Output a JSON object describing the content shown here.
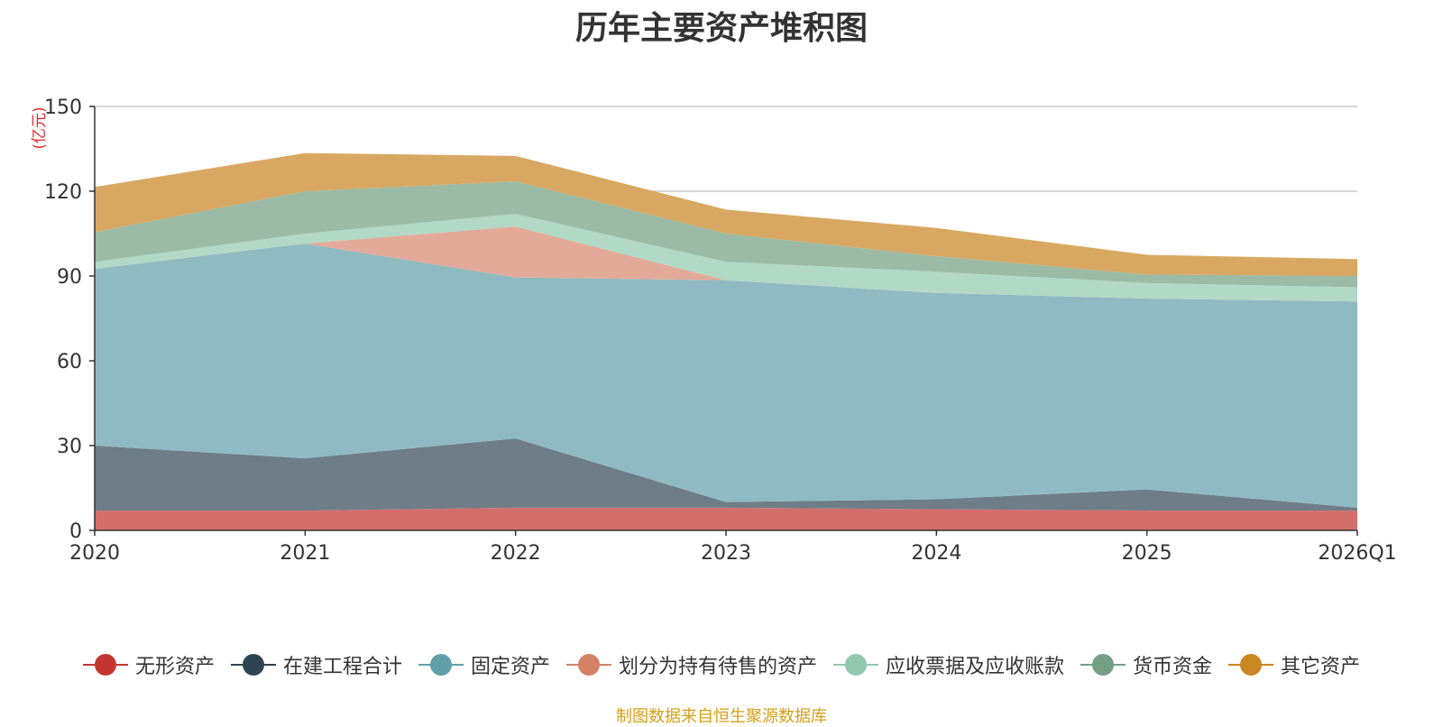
{
  "chart_data": {
    "type": "area",
    "stacked": true,
    "title": "历年主要资产堆积图",
    "ylabel": "(亿元)",
    "xlabel": "",
    "ylim": [
      0,
      150
    ],
    "yticks": [
      0,
      30,
      60,
      90,
      120,
      150
    ],
    "categories": [
      "2020",
      "2021",
      "2022",
      "2023",
      "2024",
      "2025",
      "2026Q1"
    ],
    "series": [
      {
        "name": "无形资产",
        "color": "#c23531",
        "fill": "#d46e6b",
        "values": [
          7,
          7,
          8,
          8,
          7.5,
          7,
          7
        ]
      },
      {
        "name": "在建工程合计",
        "color": "#2f4554",
        "fill": "#6e7d88",
        "values": [
          23,
          18.5,
          24.5,
          2,
          3.5,
          7.5,
          1
        ]
      },
      {
        "name": "固定资产",
        "color": "#61a0a8",
        "fill": "#90bac1",
        "values": [
          62.5,
          76,
          57,
          78.5,
          73,
          67.5,
          73
        ]
      },
      {
        "name": "划分为持有待售的资产",
        "color": "#d48265",
        "fill": "#e3a998",
        "values": [
          0,
          0,
          18,
          0,
          0,
          0,
          0
        ]
      },
      {
        "name": "应收票据及应收账款",
        "color": "#91c7ae",
        "fill": "#b2d8c6",
        "values": [
          2.5,
          3.5,
          4.5,
          6.5,
          7.5,
          5.5,
          5
        ]
      },
      {
        "name": "货币资金",
        "color": "#749f83",
        "fill": "#9bbba6",
        "values": [
          10.5,
          15,
          11.5,
          10,
          5.5,
          3,
          4
        ]
      },
      {
        "name": "其它资产",
        "color": "#ca8622",
        "fill": "#d8a862",
        "values": [
          16,
          13.5,
          9,
          8.5,
          10,
          7,
          6
        ]
      }
    ],
    "legend_position": "bottom",
    "grid": true
  },
  "source_note": "制图数据来自恒生聚源数据库"
}
